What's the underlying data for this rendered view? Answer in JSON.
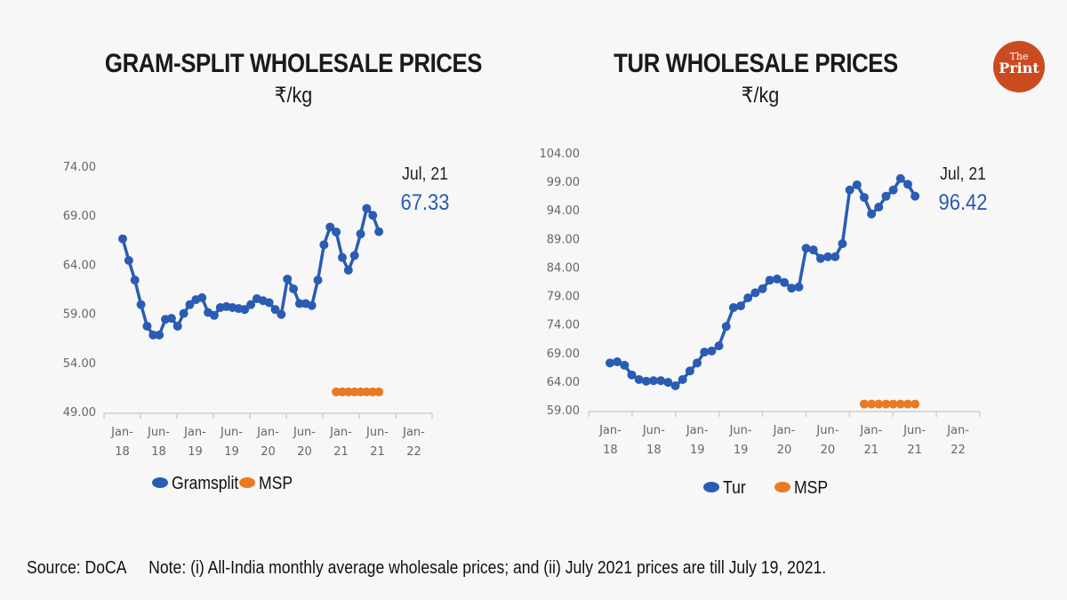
{
  "brand": {
    "logo_line1": "The",
    "logo_line2": "Print",
    "color": "#cc4a1f"
  },
  "footer": {
    "source": "Source: DoCA",
    "note": "Note: (i) All-India monthly average wholesale prices; and (ii) July 2021 prices are till July 19, 2021."
  },
  "chart_data": [
    {
      "type": "line",
      "title": "GRAM-SPLIT WHOLESALE PRICES",
      "subtitle": "₹/kg",
      "xlabel": "",
      "ylabel": "",
      "ylim": [
        49,
        74
      ],
      "yticks": [
        "74.00",
        "69.00",
        "64.00",
        "59.00",
        "54.00",
        "49.00"
      ],
      "xtick_labels": [
        [
          "Jan-",
          "18"
        ],
        [
          "Jun-",
          "18"
        ],
        [
          "Jan-",
          "19"
        ],
        [
          "Jun-",
          "19"
        ],
        [
          "Jan-",
          "20"
        ],
        [
          "Jun-",
          "20"
        ],
        [
          "Jan-",
          "21"
        ],
        [
          "Jun-",
          "21"
        ],
        [
          "Jan-",
          "22"
        ]
      ],
      "x_start": "Jan-18",
      "annotation": {
        "label": "Jul, 21",
        "value": "67.33"
      },
      "legend": [
        "Gramsplit",
        "MSP"
      ],
      "legend_position": "bottom",
      "series": [
        {
          "name": "Gramsplit",
          "color": "#2a5cb3",
          "start_month_index": 0,
          "values": [
            66.6,
            64.4,
            62.4,
            59.9,
            57.7,
            56.8,
            56.8,
            58.4,
            58.5,
            57.7,
            59.0,
            59.9,
            60.4,
            60.6,
            59.1,
            58.8,
            59.6,
            59.7,
            59.6,
            59.5,
            59.4,
            59.9,
            60.5,
            60.3,
            60.1,
            59.4,
            58.9,
            62.5,
            61.5,
            60.0,
            60.0,
            59.8,
            62.4,
            66.0,
            67.8,
            67.3,
            64.7,
            63.4,
            64.9,
            67.1,
            69.7,
            69.0,
            67.33
          ]
        },
        {
          "name": "MSP",
          "color": "#e87a22",
          "start_month_index": 35,
          "values": [
            51.0,
            51.0,
            51.0,
            51.0,
            51.0,
            51.0,
            51.0,
            51.0
          ]
        }
      ]
    },
    {
      "type": "line",
      "title": "TUR WHOLESALE PRICES",
      "subtitle": "₹/kg",
      "xlabel": "",
      "ylabel": "",
      "ylim": [
        59,
        104
      ],
      "yticks": [
        "104.00",
        "99.00",
        "94.00",
        "89.00",
        "84.00",
        "79.00",
        "74.00",
        "69.00",
        "64.00",
        "59.00"
      ],
      "xtick_labels": [
        [
          "Jan-",
          "18"
        ],
        [
          "Jun-",
          "18"
        ],
        [
          "Jan-",
          "19"
        ],
        [
          "Jun-",
          "19"
        ],
        [
          "Jan-",
          "20"
        ],
        [
          "Jun-",
          "20"
        ],
        [
          "Jan-",
          "21"
        ],
        [
          "Jun-",
          "21"
        ],
        [
          "Jan-",
          "22"
        ]
      ],
      "x_start": "Jan-18",
      "annotation": {
        "label": "Jul, 21",
        "value": "96.42"
      },
      "legend": [
        "Tur",
        "MSP"
      ],
      "legend_position": "bottom",
      "series": [
        {
          "name": "Tur",
          "color": "#2a5cb3",
          "start_month_index": 0,
          "values": [
            67.2,
            67.4,
            66.8,
            65.1,
            64.3,
            64.0,
            64.1,
            64.1,
            63.8,
            63.2,
            64.3,
            65.8,
            67.2,
            69.1,
            69.3,
            70.2,
            73.6,
            76.9,
            77.2,
            78.6,
            79.5,
            80.2,
            81.7,
            81.9,
            81.3,
            80.3,
            80.5,
            87.3,
            87.0,
            85.5,
            85.8,
            85.8,
            88.1,
            97.5,
            98.4,
            96.2,
            93.3,
            94.5,
            96.4,
            97.5,
            99.5,
            98.5,
            96.42
          ]
        },
        {
          "name": "MSP",
          "color": "#e87a22",
          "start_month_index": 35,
          "values": [
            60.0,
            60.0,
            60.0,
            60.0,
            60.0,
            60.0,
            60.0,
            60.0
          ]
        }
      ]
    }
  ]
}
